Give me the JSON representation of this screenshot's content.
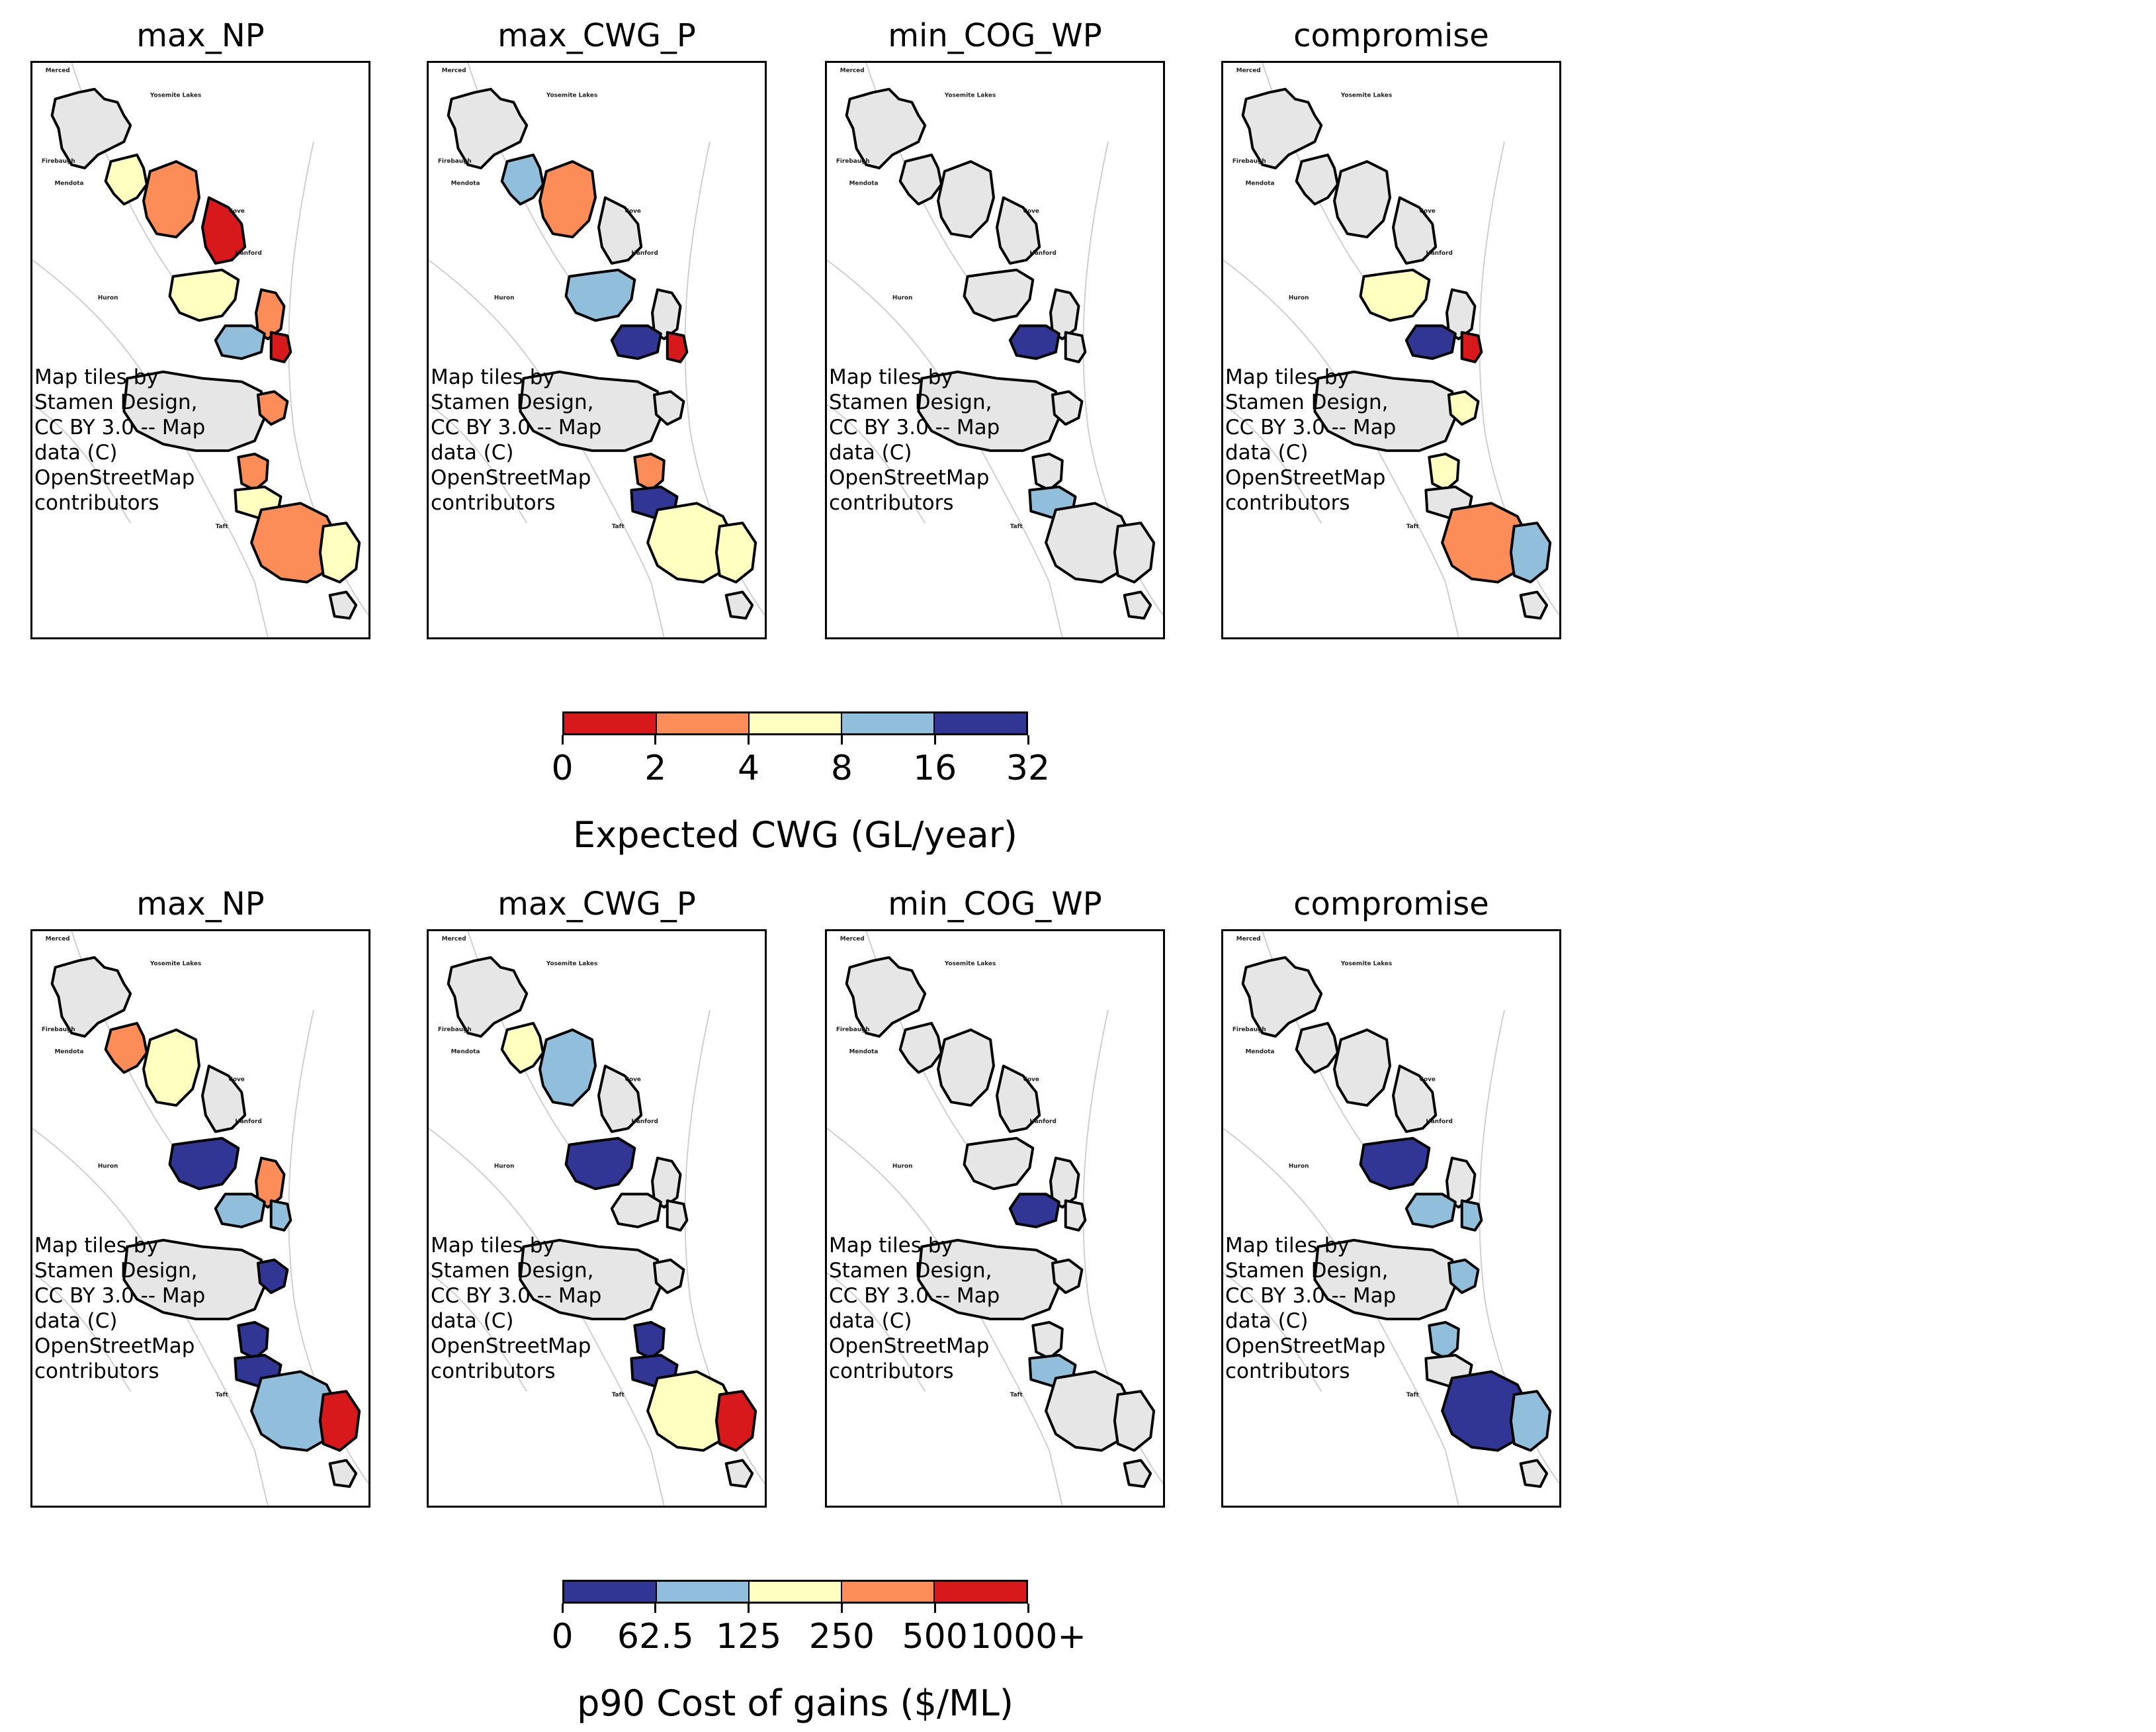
{
  "figure": {
    "rows": [
      {
        "panels": [
          {
            "title": "max_NP",
            "fills": [
              "#e6e6e6",
              "#ffffbf",
              "#fc8d59",
              "#d7191c",
              "#ffffbf",
              "#fc8d59",
              "#91bfdb",
              "#d7191c",
              "#e6e6e6",
              "#fc8d59",
              "#fc8d59",
              "#ffffbf",
              "#fc8d59",
              "#ffffbf"
            ]
          },
          {
            "title": "max_CWG_P",
            "fills": [
              "#e6e6e6",
              "#91bfdb",
              "#fc8d59",
              "#e6e6e6",
              "#91bfdb",
              "#e6e6e6",
              "#313695",
              "#d7191c",
              "#e6e6e6",
              "#fc8d59",
              "#e6e6e6",
              "#313695",
              "#ffffbf",
              "#ffffbf"
            ]
          },
          {
            "title": "min_COG_WP",
            "fills": [
              "#e6e6e6",
              "#e6e6e6",
              "#e6e6e6",
              "#e6e6e6",
              "#e6e6e6",
              "#e6e6e6",
              "#313695",
              "#e6e6e6",
              "#e6e6e6",
              "#e6e6e6",
              "#e6e6e6",
              "#91bfdb",
              "#e6e6e6",
              "#e6e6e6"
            ]
          },
          {
            "title": "compromise",
            "fills": [
              "#e6e6e6",
              "#e6e6e6",
              "#e6e6e6",
              "#e6e6e6",
              "#ffffbf",
              "#e6e6e6",
              "#313695",
              "#d7191c",
              "#e6e6e6",
              "#ffffbf",
              "#ffffbf",
              "#e6e6e6",
              "#fc8d59",
              "#91bfdb"
            ]
          }
        ],
        "colorbar": {
          "colors": [
            "#d7191c",
            "#fc8d59",
            "#ffffbf",
            "#91bfdb",
            "#313695"
          ],
          "ticks": [
            "0",
            "2",
            "4",
            "8",
            "16",
            "32"
          ],
          "label": "Expected CWG (GL/year)"
        }
      },
      {
        "panels": [
          {
            "title": "max_NP",
            "fills": [
              "#e6e6e6",
              "#fc8d59",
              "#ffffbf",
              "#e6e6e6",
              "#313695",
              "#fc8d59",
              "#91bfdb",
              "#91bfdb",
              "#e6e6e6",
              "#313695",
              "#313695",
              "#313695",
              "#91bfdb",
              "#d7191c"
            ]
          },
          {
            "title": "max_CWG_P",
            "fills": [
              "#e6e6e6",
              "#ffffbf",
              "#91bfdb",
              "#e6e6e6",
              "#313695",
              "#e6e6e6",
              "#e6e6e6",
              "#e6e6e6",
              "#e6e6e6",
              "#313695",
              "#e6e6e6",
              "#313695",
              "#ffffbf",
              "#d7191c"
            ]
          },
          {
            "title": "min_COG_WP",
            "fills": [
              "#e6e6e6",
              "#e6e6e6",
              "#e6e6e6",
              "#e6e6e6",
              "#e6e6e6",
              "#e6e6e6",
              "#313695",
              "#e6e6e6",
              "#e6e6e6",
              "#e6e6e6",
              "#e6e6e6",
              "#91bfdb",
              "#e6e6e6",
              "#e6e6e6"
            ]
          },
          {
            "title": "compromise",
            "fills": [
              "#e6e6e6",
              "#e6e6e6",
              "#e6e6e6",
              "#e6e6e6",
              "#313695",
              "#e6e6e6",
              "#91bfdb",
              "#91bfdb",
              "#e6e6e6",
              "#91bfdb",
              "#91bfdb",
              "#e6e6e6",
              "#313695",
              "#91bfdb"
            ]
          }
        ],
        "colorbar": {
          "colors": [
            "#313695",
            "#91bfdb",
            "#ffffbf",
            "#fc8d59",
            "#d7191c"
          ],
          "ticks": [
            "0",
            "62.5",
            "125",
            "250",
            "500",
            "1000+"
          ],
          "label": "p90 Cost of gains ($/ML)"
        }
      }
    ],
    "attribution": "Map tiles by Stamen Design, CC BY 3.0 -- Map data (C) OpenStreetMap contributors",
    "places": [
      "Merced",
      "Yosemite Lakes",
      "Firebaugh",
      "Mendota",
      "Cove",
      "Huron",
      "Hanford",
      "Taft"
    ]
  }
}
